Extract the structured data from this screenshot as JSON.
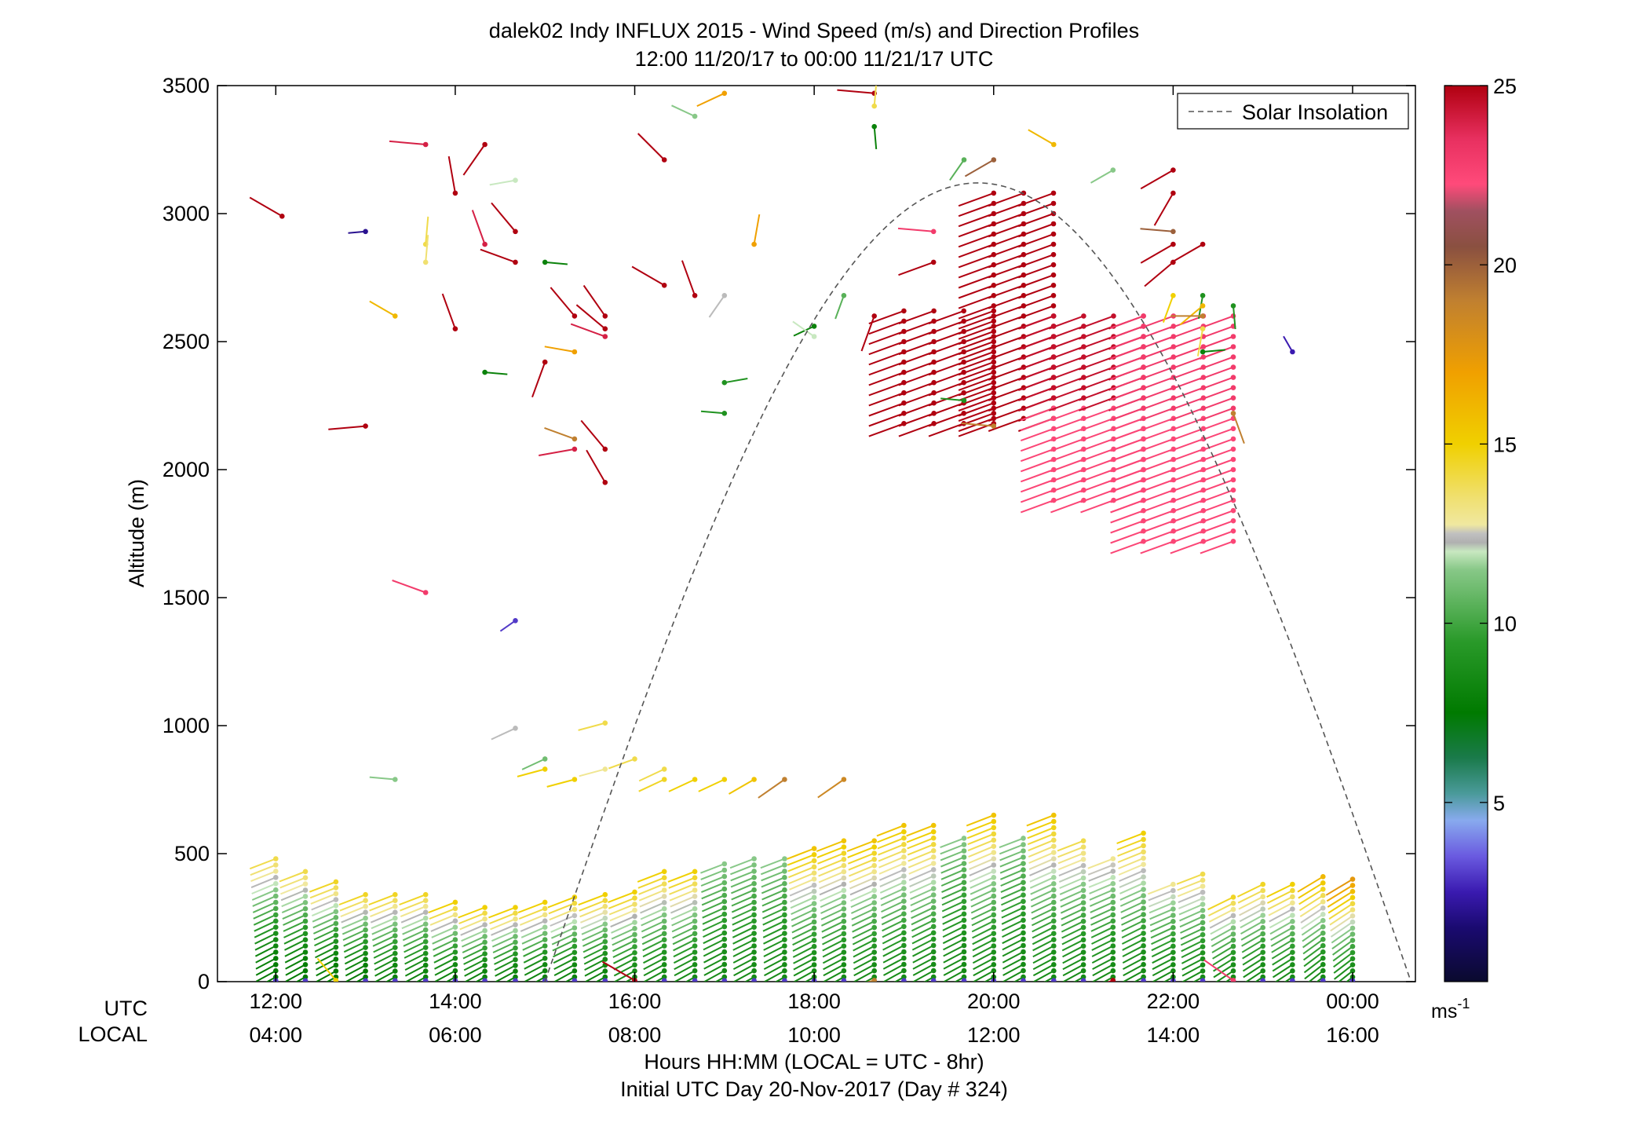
{
  "chart_data": {
    "type": "scatter",
    "title": "dalek02 Indy INFLUX 2015 - Wind Speed (m/s) and Direction Profiles",
    "subtitle": "12:00 11/20/17 to 00:00 11/21/17  UTC",
    "ylabel": "Altitude (m)",
    "xlabel": "Hours HH:MM  (LOCAL = UTC - 8hr)",
    "xlabel2": "Initial UTC Day 20-Nov-2017 (Day # 324)",
    "axis_row_labels": [
      "UTC",
      "LOCAL"
    ],
    "xlim": [
      11.35,
      24.7
    ],
    "ylim": [
      0,
      3500
    ],
    "x_ticks": [
      {
        "value": 12,
        "utc": "12:00",
        "local": "04:00"
      },
      {
        "value": 14,
        "utc": "14:00",
        "local": "06:00"
      },
      {
        "value": 16,
        "utc": "16:00",
        "local": "08:00"
      },
      {
        "value": 18,
        "utc": "18:00",
        "local": "10:00"
      },
      {
        "value": 20,
        "utc": "20:00",
        "local": "12:00"
      },
      {
        "value": 22,
        "utc": "22:00",
        "local": "14:00"
      },
      {
        "value": 24,
        "utc": "00:00",
        "local": "16:00"
      }
    ],
    "y_ticks": [
      0,
      500,
      1000,
      1500,
      2000,
      2500,
      3000,
      3500
    ],
    "legend": {
      "label": "Solar Insolation",
      "placement": "top-right"
    },
    "colorbar": {
      "min": 0,
      "max": 25,
      "ticks": [
        5,
        10,
        15,
        20,
        25
      ],
      "unit": "ms-1"
    },
    "solar_insolation": {
      "start": 15.0,
      "peak_time": 19.75,
      "peak_alt": 3120,
      "end": 24.65
    },
    "profiles": [
      {
        "t": 12,
        "top": 480,
        "spd_low": 7.5,
        "spd_high": 14,
        "dir": 245
      },
      {
        "t": 12.33,
        "top": 430,
        "spd_low": 7.5,
        "spd_high": 14,
        "dir": 245
      },
      {
        "t": 12.67,
        "top": 390,
        "spd_low": 7.5,
        "spd_high": 14.5,
        "dir": 245
      },
      {
        "t": 13,
        "top": 340,
        "spd_low": 7.5,
        "spd_high": 14.5,
        "dir": 245
      },
      {
        "t": 13.33,
        "top": 340,
        "spd_low": 8,
        "spd_high": 14.5,
        "dir": 245
      },
      {
        "t": 13.67,
        "top": 340,
        "spd_low": 8,
        "spd_high": 14.5,
        "dir": 245
      },
      {
        "t": 14,
        "top": 310,
        "spd_low": 8,
        "spd_high": 15,
        "dir": 245
      },
      {
        "t": 14.33,
        "top": 290,
        "spd_low": 8,
        "spd_high": 15,
        "dir": 245
      },
      {
        "t": 14.67,
        "top": 290,
        "spd_low": 8,
        "spd_high": 15,
        "dir": 245
      },
      {
        "t": 15,
        "top": 310,
        "spd_low": 8,
        "spd_high": 15,
        "dir": 245
      },
      {
        "t": 15.33,
        "top": 330,
        "spd_low": 8,
        "spd_high": 15,
        "dir": 245
      },
      {
        "t": 15.67,
        "top": 340,
        "spd_low": 8,
        "spd_high": 15,
        "dir": 245
      },
      {
        "t": 16,
        "top": 350,
        "spd_low": 8.5,
        "spd_high": 15,
        "dir": 245
      },
      {
        "t": 16.33,
        "top": 430,
        "spd_low": 8.5,
        "spd_high": 15,
        "dir": 245
      },
      {
        "t": 16.67,
        "top": 430,
        "spd_low": 8.5,
        "spd_high": 15,
        "dir": 245
      },
      {
        "t": 17,
        "top": 460,
        "spd_low": 8.5,
        "spd_high": 11.5,
        "dir": 245
      },
      {
        "t": 17.33,
        "top": 480,
        "spd_low": 8.5,
        "spd_high": 11.5,
        "dir": 245
      },
      {
        "t": 17.67,
        "top": 480,
        "spd_low": 8.5,
        "spd_high": 11.5,
        "dir": 245
      },
      {
        "t": 18,
        "top": 520,
        "spd_low": 8.5,
        "spd_high": 15.5,
        "dir": 245
      },
      {
        "t": 18.33,
        "top": 550,
        "spd_low": 8.5,
        "spd_high": 15.5,
        "dir": 245
      },
      {
        "t": 18.67,
        "top": 550,
        "spd_low": 8.5,
        "spd_high": 15.5,
        "dir": 245
      },
      {
        "t": 19,
        "top": 610,
        "spd_low": 8.5,
        "spd_high": 15.5,
        "dir": 245
      },
      {
        "t": 19.33,
        "top": 610,
        "spd_low": 8.5,
        "spd_high": 15.5,
        "dir": 245
      },
      {
        "t": 19.67,
        "top": 560,
        "spd_low": 8.5,
        "spd_high": 11.5,
        "dir": 245
      },
      {
        "t": 20,
        "top": 650,
        "spd_low": 8.5,
        "spd_high": 15.5,
        "dir": 245
      },
      {
        "t": 20.33,
        "top": 560,
        "spd_low": 8.5,
        "spd_high": 11.5,
        "dir": 245
      },
      {
        "t": 20.67,
        "top": 650,
        "spd_low": 8.5,
        "spd_high": 15.5,
        "dir": 245
      },
      {
        "t": 21,
        "top": 550,
        "spd_low": 8.5,
        "spd_high": 14,
        "dir": 245
      },
      {
        "t": 21.33,
        "top": 480,
        "spd_low": 8.5,
        "spd_high": 13,
        "dir": 245
      },
      {
        "t": 21.67,
        "top": 580,
        "spd_low": 8.5,
        "spd_high": 15,
        "dir": 245
      },
      {
        "t": 22,
        "top": 380,
        "spd_low": 8.5,
        "spd_high": 13,
        "dir": 245
      },
      {
        "t": 22.33,
        "top": 420,
        "spd_low": 8.5,
        "spd_high": 14,
        "dir": 245
      },
      {
        "t": 22.67,
        "top": 330,
        "spd_low": 8.5,
        "spd_high": 14.5,
        "dir": 240
      },
      {
        "t": 23,
        "top": 380,
        "spd_low": 8.5,
        "spd_high": 14.5,
        "dir": 240
      },
      {
        "t": 23.33,
        "top": 380,
        "spd_low": 8.5,
        "spd_high": 15,
        "dir": 240
      },
      {
        "t": 23.67,
        "top": 410,
        "spd_low": 8.5,
        "spd_high": 16,
        "dir": 235
      },
      {
        "t": 24,
        "top": 400,
        "spd_low": 8.5,
        "spd_high": 17.5,
        "dir": 235
      }
    ],
    "jets": [
      {
        "t0": 19.0,
        "t1": 20.0,
        "alt_low": 2180,
        "alt_high": 2640,
        "spd": 25,
        "dir": 250
      },
      {
        "t0": 20.0,
        "t1": 20.67,
        "alt_low": 2200,
        "alt_high": 3080,
        "spd": 25,
        "dir": 250
      },
      {
        "t0": 20.67,
        "t1": 21.67,
        "alt_low": 1880,
        "alt_high": 2600,
        "spd": 24.5,
        "dir": 250
      },
      {
        "t0": 21.67,
        "t1": 22.67,
        "alt_low": 1720,
        "alt_high": 2600,
        "spd": 23,
        "dir": 250
      }
    ],
    "points": [
      {
        "t": 12.07,
        "a": 2990,
        "s": 25,
        "d": 300
      },
      {
        "t": 13.0,
        "a": 2930,
        "s": 2,
        "d": 265
      },
      {
        "t": 13.67,
        "a": 3270,
        "s": 24,
        "d": 275
      },
      {
        "t": 14.0,
        "a": 3080,
        "s": 25,
        "d": 350
      },
      {
        "t": 14.33,
        "a": 3270,
        "s": 25,
        "d": 215
      },
      {
        "t": 13.33,
        "a": 2600,
        "s": 16,
        "d": 300
      },
      {
        "t": 13.67,
        "a": 2880,
        "s": 14,
        "d": 5
      },
      {
        "t": 13.67,
        "a": 2810,
        "s": 13.5,
        "d": 5
      },
      {
        "t": 14.0,
        "a": 2550,
        "s": 25,
        "d": 340
      },
      {
        "t": 14.33,
        "a": 2880,
        "s": 24,
        "d": 340
      },
      {
        "t": 14.67,
        "a": 2810,
        "s": 25,
        "d": 290
      },
      {
        "t": 14.67,
        "a": 2930,
        "s": 25,
        "d": 320
      },
      {
        "t": 15.0,
        "a": 2810,
        "s": 8,
        "d": 95
      },
      {
        "t": 15.33,
        "a": 2600,
        "s": 25,
        "d": 320
      },
      {
        "t": 15.67,
        "a": 2600,
        "s": 25,
        "d": 325
      },
      {
        "t": 15.67,
        "a": 2550,
        "s": 25,
        "d": 310
      },
      {
        "t": 15.67,
        "a": 2520,
        "s": 24,
        "d": 290
      },
      {
        "t": 15.33,
        "a": 2460,
        "s": 17,
        "d": 280
      },
      {
        "t": 15.0,
        "a": 2420,
        "s": 25,
        "d": 200
      },
      {
        "t": 14.33,
        "a": 2380,
        "s": 8,
        "d": 95
      },
      {
        "t": 13.0,
        "a": 2170,
        "s": 25,
        "d": 265
      },
      {
        "t": 15.33,
        "a": 2120,
        "s": 19,
        "d": 290
      },
      {
        "t": 15.33,
        "a": 2080,
        "s": 24,
        "d": 260
      },
      {
        "t": 15.67,
        "a": 2080,
        "s": 25,
        "d": 320
      },
      {
        "t": 15.67,
        "a": 1950,
        "s": 25,
        "d": 330
      },
      {
        "t": 13.67,
        "a": 1520,
        "s": 23,
        "d": 290
      },
      {
        "t": 14.67,
        "a": 1410,
        "s": 3,
        "d": 235
      },
      {
        "t": 16.33,
        "a": 3210,
        "s": 25,
        "d": 315
      },
      {
        "t": 16.67,
        "a": 2680,
        "s": 25,
        "d": 340
      },
      {
        "t": 16.33,
        "a": 2720,
        "s": 25,
        "d": 300
      },
      {
        "t": 17.0,
        "a": 2680,
        "s": 12.5,
        "d": 215
      },
      {
        "t": 17.33,
        "a": 2880,
        "s": 17,
        "d": 10
      },
      {
        "t": 17.0,
        "a": 2340,
        "s": 9,
        "d": 80
      },
      {
        "t": 17.0,
        "a": 2220,
        "s": 9,
        "d": 275
      },
      {
        "t": 16.67,
        "a": 3380,
        "s": 11.5,
        "d": 295
      },
      {
        "t": 17.0,
        "a": 3470,
        "s": 17,
        "d": 245
      },
      {
        "t": 18.67,
        "a": 3470,
        "s": 25,
        "d": 275
      },
      {
        "t": 18.67,
        "a": 3420,
        "s": 14,
        "d": 5
      },
      {
        "t": 18.67,
        "a": 3340,
        "s": 8,
        "d": 175
      },
      {
        "t": 18.0,
        "a": 2560,
        "s": 8,
        "d": 245
      },
      {
        "t": 18.33,
        "a": 2680,
        "s": 10.5,
        "d": 200
      },
      {
        "t": 18.0,
        "a": 2520,
        "s": 12,
        "d": 305
      },
      {
        "t": 18.67,
        "a": 2600,
        "s": 25,
        "d": 200
      },
      {
        "t": 19.33,
        "a": 2930,
        "s": 23,
        "d": 275
      },
      {
        "t": 19.33,
        "a": 2810,
        "s": 25,
        "d": 250
      },
      {
        "t": 19.67,
        "a": 3210,
        "s": 10.5,
        "d": 215
      },
      {
        "t": 20.0,
        "a": 3210,
        "s": 20,
        "d": 240
      },
      {
        "t": 20.67,
        "a": 3270,
        "s": 16,
        "d": 300
      },
      {
        "t": 21.33,
        "a": 3170,
        "s": 11.5,
        "d": 240
      },
      {
        "t": 22.0,
        "a": 3170,
        "s": 25,
        "d": 240
      },
      {
        "t": 22.0,
        "a": 3080,
        "s": 25,
        "d": 210
      },
      {
        "t": 22.0,
        "a": 2930,
        "s": 20,
        "d": 275
      },
      {
        "t": 22.0,
        "a": 2880,
        "s": 25,
        "d": 240
      },
      {
        "t": 22.33,
        "a": 2880,
        "s": 25,
        "d": 240
      },
      {
        "t": 22.0,
        "a": 2810,
        "s": 25,
        "d": 230
      },
      {
        "t": 22.33,
        "a": 2680,
        "s": 9,
        "d": 190
      },
      {
        "t": 22.33,
        "a": 2640,
        "s": 16,
        "d": 230
      },
      {
        "t": 22.33,
        "a": 2600,
        "s": 19,
        "d": 270
      },
      {
        "t": 22.33,
        "a": 2550,
        "s": 14,
        "d": 190
      },
      {
        "t": 22.33,
        "a": 2460,
        "s": 8,
        "d": 85
      },
      {
        "t": 22.67,
        "a": 2640,
        "s": 9,
        "d": 175
      },
      {
        "t": 22.0,
        "a": 2680,
        "s": 15,
        "d": 200
      },
      {
        "t": 22.67,
        "a": 2220,
        "s": 19,
        "d": 160
      },
      {
        "t": 23.33,
        "a": 2460,
        "s": 2.5,
        "d": 330
      },
      {
        "t": 20.0,
        "a": 2170,
        "s": 19,
        "d": 275
      },
      {
        "t": 19.67,
        "a": 2270,
        "s": 9,
        "d": 275
      },
      {
        "t": 14.67,
        "a": 3130,
        "s": 12,
        "d": 260
      },
      {
        "t": 13.33,
        "a": 790,
        "s": 11.5,
        "d": 275
      },
      {
        "t": 14.67,
        "a": 990,
        "s": 12.5,
        "d": 245
      },
      {
        "t": 15.67,
        "a": 1010,
        "s": 14,
        "d": 255
      },
      {
        "t": 15.0,
        "a": 870,
        "s": 11,
        "d": 245
      },
      {
        "t": 15.0,
        "a": 830,
        "s": 15,
        "d": 255
      },
      {
        "t": 15.33,
        "a": 790,
        "s": 15,
        "d": 255
      },
      {
        "t": 15.67,
        "a": 830,
        "s": 13,
        "d": 255
      },
      {
        "t": 16.0,
        "a": 870,
        "s": 14,
        "d": 250
      },
      {
        "t": 16.33,
        "a": 830,
        "s": 14,
        "d": 245
      },
      {
        "t": 16.33,
        "a": 790,
        "s": 14.5,
        "d": 245
      },
      {
        "t": 16.67,
        "a": 790,
        "s": 15,
        "d": 245
      },
      {
        "t": 17.0,
        "a": 790,
        "s": 15,
        "d": 245
      },
      {
        "t": 17.33,
        "a": 790,
        "s": 15.5,
        "d": 240
      },
      {
        "t": 17.67,
        "a": 790,
        "s": 19,
        "d": 235
      },
      {
        "t": 18.33,
        "a": 790,
        "s": 18.5,
        "d": 235
      },
      {
        "t": 18.67,
        "a": 5,
        "s": 19,
        "d": 255
      },
      {
        "t": 21.33,
        "a": 5,
        "s": 25,
        "d": 250
      },
      {
        "t": 22.67,
        "a": 5,
        "s": 23,
        "d": 305
      },
      {
        "t": 12.67,
        "a": 5,
        "s": 15,
        "d": 320
      },
      {
        "t": 16.0,
        "a": 5,
        "s": 25,
        "d": 300
      }
    ]
  }
}
